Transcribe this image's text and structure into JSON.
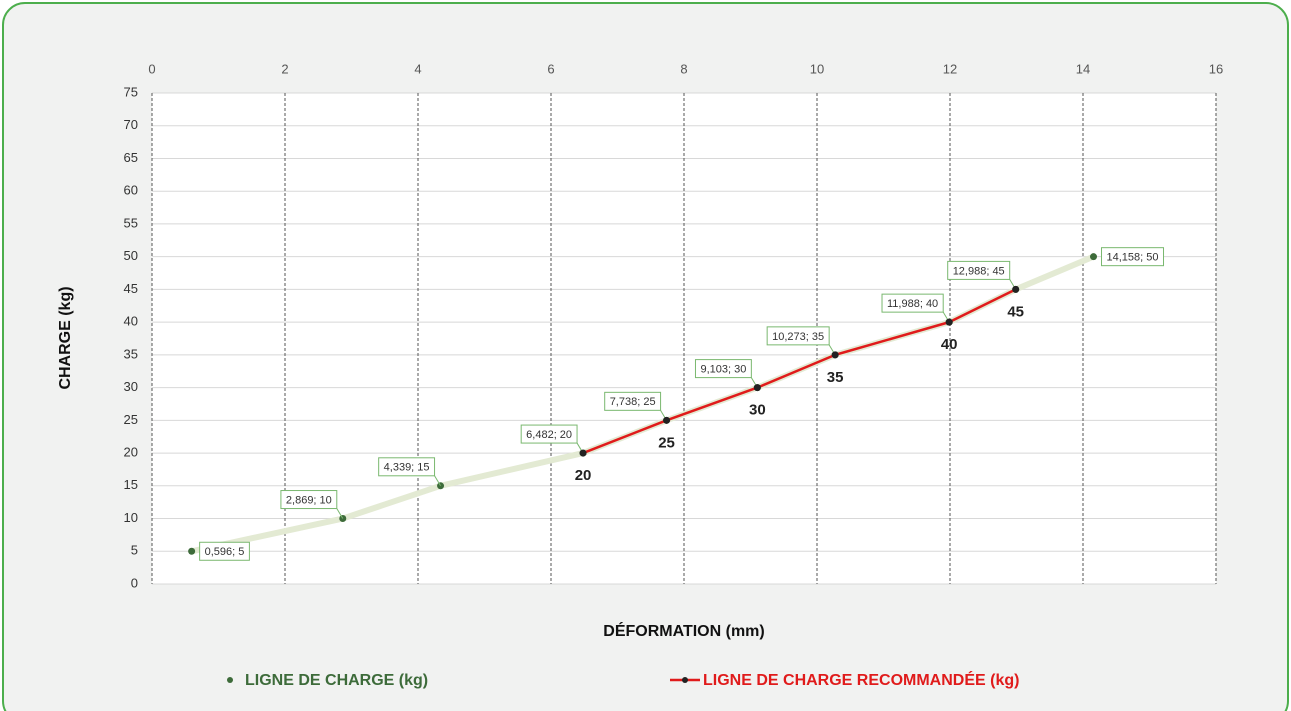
{
  "chart_data": {
    "type": "scatter",
    "x_label": "DÉFORMATION (mm)",
    "y_label": "CHARGE (kg)",
    "xlim": [
      0,
      16
    ],
    "xticks": [
      0,
      2,
      4,
      6,
      8,
      10,
      12,
      14,
      16
    ],
    "ylim": [
      0,
      75
    ],
    "yticks": [
      0,
      5,
      10,
      15,
      20,
      25,
      30,
      35,
      40,
      45,
      50,
      55,
      60,
      65,
      70,
      75
    ],
    "grid": true,
    "legend": "bottom",
    "series": [
      {
        "name": "LIGNE DE CHARGE (kg)",
        "color": "#3d6b3a",
        "line_color": "#e3ead3",
        "x": [
          0.596,
          2.869,
          4.339,
          6.482,
          7.738,
          9.103,
          10.273,
          11.988,
          12.988,
          14.158
        ],
        "values": [
          5,
          10,
          15,
          20,
          25,
          30,
          35,
          40,
          45,
          50
        ],
        "value_labels": [
          "0,596; 5",
          "2,869; 10",
          "4,339; 15",
          "6,482; 20",
          "7,738; 25",
          "9,103; 30",
          "10,273; 35",
          "11,988; 40",
          "12,988; 45",
          "14,158; 50"
        ]
      },
      {
        "name": "LIGNE DE CHARGE RECOMMANDÉE (kg)",
        "color": "#e01b1b",
        "x": [
          6.482,
          7.738,
          9.103,
          10.273,
          11.988,
          12.988
        ],
        "values": [
          20,
          25,
          30,
          35,
          40,
          45
        ]
      }
    ]
  }
}
